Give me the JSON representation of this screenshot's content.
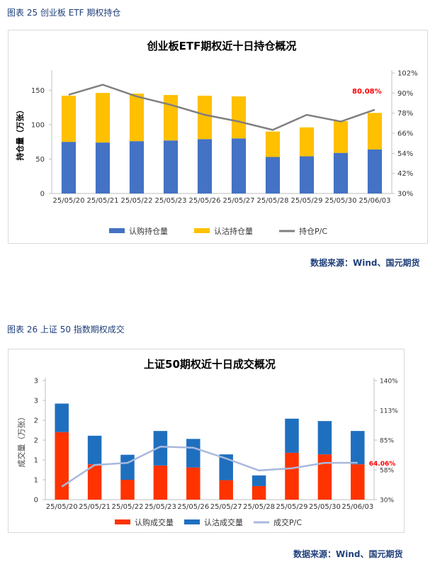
{
  "captions": {
    "fig25": "图表 25  创业板 ETF 期权持仓",
    "fig26": "图表 26  上证 50 指数期权成交"
  },
  "source_text": "数据来源：Wind、国元期货",
  "chart_data": [
    {
      "type": "bar",
      "stacked": true,
      "title": "创业板ETF期权近十日持仓概况",
      "ylabel": "持仓量（万张）",
      "ylim": [
        0,
        175
      ],
      "yticks": [
        0,
        50,
        100,
        150
      ],
      "y2lim": [
        30,
        102
      ],
      "y2ticks": [
        "30%",
        "42%",
        "54%",
        "66%",
        "78%",
        "90%",
        "102%"
      ],
      "y2tickvalues": [
        30,
        42,
        54,
        66,
        78,
        90,
        102
      ],
      "categories": [
        "25/05/20",
        "25/05/21",
        "25/05/22",
        "25/05/23",
        "25/05/26",
        "25/05/27",
        "25/05/28",
        "25/05/29",
        "25/05/30",
        "25/06/03"
      ],
      "series": [
        {
          "name": "认购持仓量",
          "kind": "bar",
          "color": "#4472c4",
          "values": [
            75,
            74,
            76,
            77,
            79,
            80,
            53,
            54,
            59,
            64
          ]
        },
        {
          "name": "认沽持仓量",
          "kind": "bar",
          "color": "#ffc000",
          "values": [
            67,
            72,
            69,
            66,
            63,
            61,
            37,
            42,
            46,
            53
          ]
        },
        {
          "name": "持仓P/C",
          "kind": "line",
          "axis": "right",
          "color": "#808080",
          "values": [
            89,
            95,
            88,
            83,
            77,
            73,
            68,
            77,
            73,
            80.08
          ]
        }
      ],
      "annotation": {
        "text": "80.08%",
        "color": "#ff0000"
      },
      "legend_position": "bottom"
    },
    {
      "type": "bar",
      "stacked": true,
      "title": "上证50期权近十日成交概况",
      "ylabel": "成交量（万张）",
      "ylim": [
        0,
        3
      ],
      "yticks": [
        0,
        0.5,
        1,
        1.5,
        2,
        2.5,
        3
      ],
      "yticklabels": [
        "0",
        "1",
        "1",
        "2",
        "2",
        "3",
        "3"
      ],
      "y2lim": [
        30,
        140
      ],
      "y2ticks": [
        "30%",
        "58%",
        "85%",
        "113%",
        "140%"
      ],
      "y2tickvalues": [
        30,
        57.5,
        85,
        112.5,
        140
      ],
      "categories": [
        "25/05/20",
        "25/05/21",
        "25/05/22",
        "25/05/23",
        "25/05/26",
        "25/05/27",
        "25/05/28",
        "25/05/29",
        "25/05/30",
        "25/06/03"
      ],
      "series": [
        {
          "name": "认购成交量",
          "kind": "bar",
          "color": "#ff3300",
          "values": [
            1.7,
            0.89,
            0.5,
            0.86,
            0.81,
            0.49,
            0.34,
            1.18,
            1.14,
            0.89
          ]
        },
        {
          "name": "认沽成交量",
          "kind": "bar",
          "color": "#1f6fbf",
          "values": [
            0.72,
            0.72,
            0.63,
            0.87,
            0.72,
            0.65,
            0.27,
            0.86,
            0.84,
            0.84
          ]
        },
        {
          "name": "成交P/C",
          "kind": "line",
          "axis": "right",
          "color": "#a9b8dc",
          "values": [
            42,
            62,
            64,
            79,
            78,
            68,
            57,
            59,
            64,
            64.06
          ]
        }
      ],
      "annotation": {
        "text": "64.06%",
        "color": "#ff0000"
      },
      "legend_position": "bottom"
    }
  ]
}
